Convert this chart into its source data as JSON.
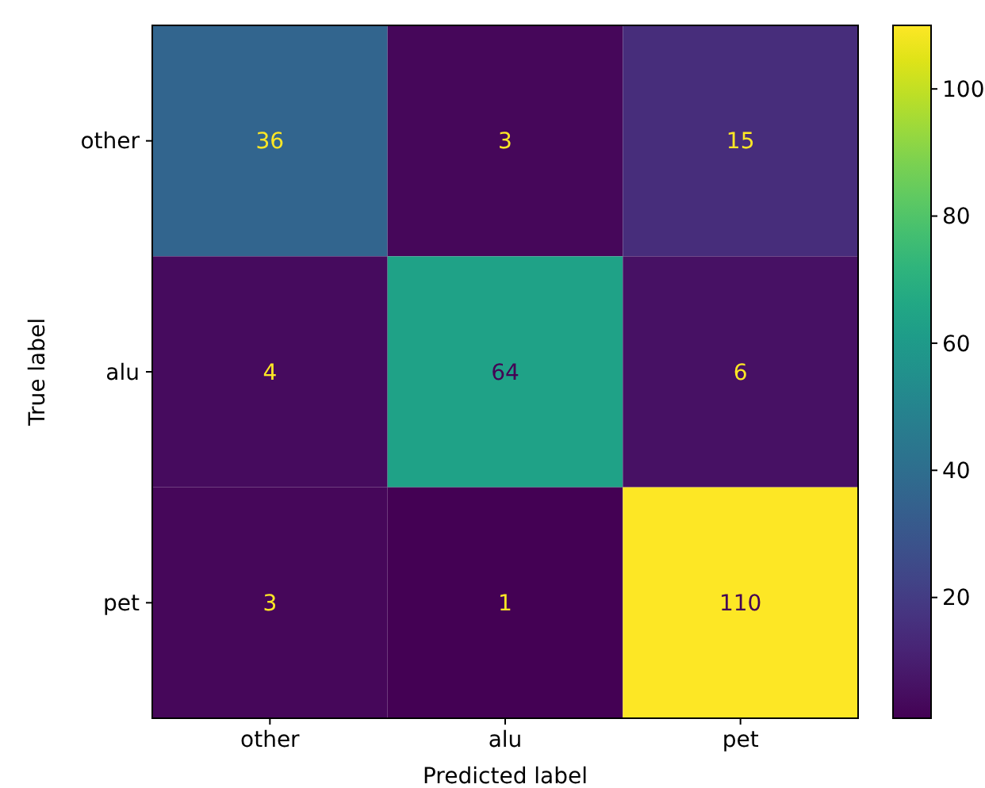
{
  "chart_data": {
    "type": "heatmap",
    "xlabel": "Predicted label",
    "ylabel": "True label",
    "categories": [
      "other",
      "alu",
      "pet"
    ],
    "y_categories": [
      "other",
      "alu",
      "pet"
    ],
    "cells": [
      [
        36,
        3,
        15
      ],
      [
        4,
        64,
        6
      ],
      [
        3,
        1,
        110
      ]
    ],
    "clim": [
      1,
      110
    ],
    "cticks": [
      20,
      40,
      60,
      80,
      100
    ],
    "data_labels": true
  }
}
